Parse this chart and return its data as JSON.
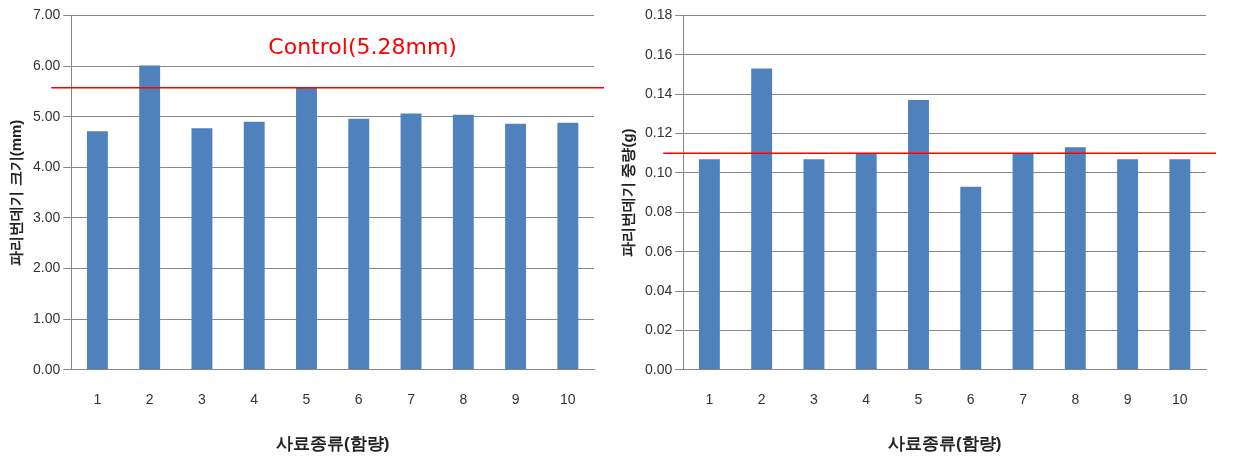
{
  "chart_data": [
    {
      "type": "bar",
      "xlabel": "사료종류(함량)",
      "ylabel": "파리번데기 크기(mm)",
      "categories": [
        "1",
        "2",
        "3",
        "4",
        "5",
        "6",
        "7",
        "8",
        "9",
        "10"
      ],
      "series": [
        {
          "color": "#4f81bd",
          "values": [
            4.71,
            6.01,
            4.77,
            4.9,
            5.58,
            4.96,
            5.06,
            5.04,
            4.86,
            4.88
          ]
        }
      ],
      "ylim": [
        0,
        7
      ],
      "yticks": [
        {
          "value": 0,
          "label": "0.00"
        },
        {
          "value": 1,
          "label": "1.00"
        },
        {
          "value": 2,
          "label": "2.00"
        },
        {
          "value": 3,
          "label": "3.00"
        },
        {
          "value": 4,
          "label": "4.00"
        },
        {
          "value": 5,
          "label": "5.00"
        },
        {
          "value": 6,
          "label": "6.00"
        },
        {
          "value": 7,
          "label": "7.00"
        }
      ],
      "grid": "y",
      "legend": false,
      "ref_lines": [
        {
          "axis": "y",
          "value": 5.57,
          "label": "Control(5.28mm)",
          "color": "#ff0000"
        }
      ]
    },
    {
      "type": "bar",
      "xlabel": "사료종류(함량)",
      "ylabel": "파리번데기 중량(g)",
      "categories": [
        "1",
        "2",
        "3",
        "4",
        "5",
        "6",
        "7",
        "8",
        "9",
        "10"
      ],
      "series": [
        {
          "color": "#4f81bd",
          "values": [
            0.107,
            0.153,
            0.107,
            0.11,
            0.137,
            0.093,
            0.11,
            0.113,
            0.107,
            0.107
          ]
        }
      ],
      "ylim": [
        0,
        0.18
      ],
      "yticks": [
        {
          "value": 0,
          "label": "0.00"
        },
        {
          "value": 0.02,
          "label": "0.02"
        },
        {
          "value": 0.04,
          "label": "0.04"
        },
        {
          "value": 0.06,
          "label": "0.06"
        },
        {
          "value": 0.08,
          "label": "0.08"
        },
        {
          "value": 0.1,
          "label": "0.10"
        },
        {
          "value": 0.12,
          "label": "0.12"
        },
        {
          "value": 0.14,
          "label": "0.14"
        },
        {
          "value": 0.16,
          "label": "0.16"
        },
        {
          "value": 0.18,
          "label": "0.18"
        }
      ],
      "grid": "y",
      "legend": false,
      "ref_lines": [
        {
          "axis": "y",
          "value": 0.11,
          "color": "#ff0000"
        }
      ]
    }
  ]
}
